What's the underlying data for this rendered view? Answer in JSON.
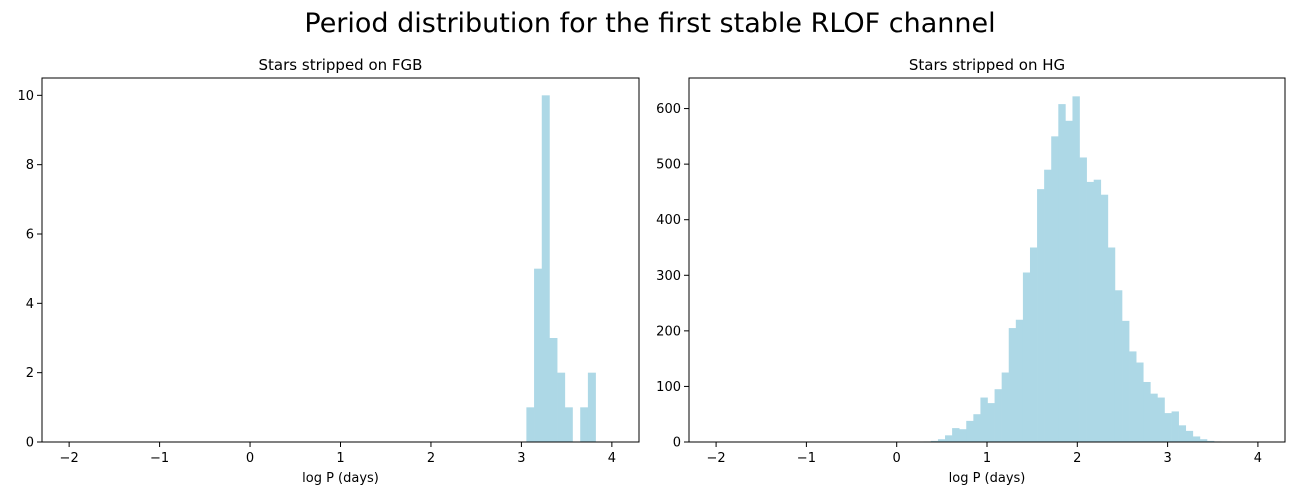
{
  "figure": {
    "title": "Period distribution for the first stable RLOF channel",
    "bar_color": "#add8e6"
  },
  "chart_data": [
    {
      "type": "bar",
      "title": "Stars stripped on FGB",
      "xlabel": "log P (days)",
      "ylabel": "",
      "xlim": [
        -2.3,
        4.3
      ],
      "ylim": [
        0,
        10.5
      ],
      "xticks": [
        -2,
        -1,
        0,
        1,
        2,
        3,
        4
      ],
      "xtick_labels": [
        "−2",
        "−1",
        "0",
        "1",
        "2",
        "3",
        "4"
      ],
      "yticks": [
        0,
        2,
        4,
        6,
        8,
        10
      ],
      "ytick_labels": [
        "0",
        "2",
        "4",
        "6",
        "8",
        "10"
      ],
      "bin_width": 0.085,
      "bins": [
        {
          "x0": 3.055,
          "x1": 3.14,
          "count": 1
        },
        {
          "x0": 3.14,
          "x1": 3.225,
          "count": 5
        },
        {
          "x0": 3.225,
          "x1": 3.31,
          "count": 10
        },
        {
          "x0": 3.31,
          "x1": 3.395,
          "count": 3
        },
        {
          "x0": 3.395,
          "x1": 3.48,
          "count": 2
        },
        {
          "x0": 3.48,
          "x1": 3.565,
          "count": 1
        },
        {
          "x0": 3.65,
          "x1": 3.735,
          "count": 1
        },
        {
          "x0": 3.735,
          "x1": 3.82,
          "count": 2
        }
      ]
    },
    {
      "type": "bar",
      "title": "Stars stripped on HG",
      "xlabel": "log P (days)",
      "ylabel": "",
      "xlim": [
        -2.3,
        4.3
      ],
      "ylim": [
        0,
        655
      ],
      "xticks": [
        -2,
        -1,
        0,
        1,
        2,
        3,
        4
      ],
      "xtick_labels": [
        "−2",
        "−1",
        "0",
        "1",
        "2",
        "3",
        "4"
      ],
      "yticks": [
        0,
        100,
        200,
        300,
        400,
        500,
        600
      ],
      "ytick_labels": [
        "0",
        "100",
        "200",
        "300",
        "400",
        "500",
        "600"
      ],
      "bin_start": 0.3,
      "bin_width": 0.0784,
      "counts": [
        1,
        2,
        5,
        12,
        25,
        23,
        38,
        50,
        80,
        70,
        95,
        125,
        205,
        220,
        305,
        350,
        455,
        490,
        550,
        608,
        578,
        622,
        512,
        468,
        472,
        445,
        350,
        273,
        218,
        163,
        143,
        108,
        87,
        80,
        52,
        55,
        30,
        20,
        10,
        5,
        2,
        1
      ]
    }
  ]
}
